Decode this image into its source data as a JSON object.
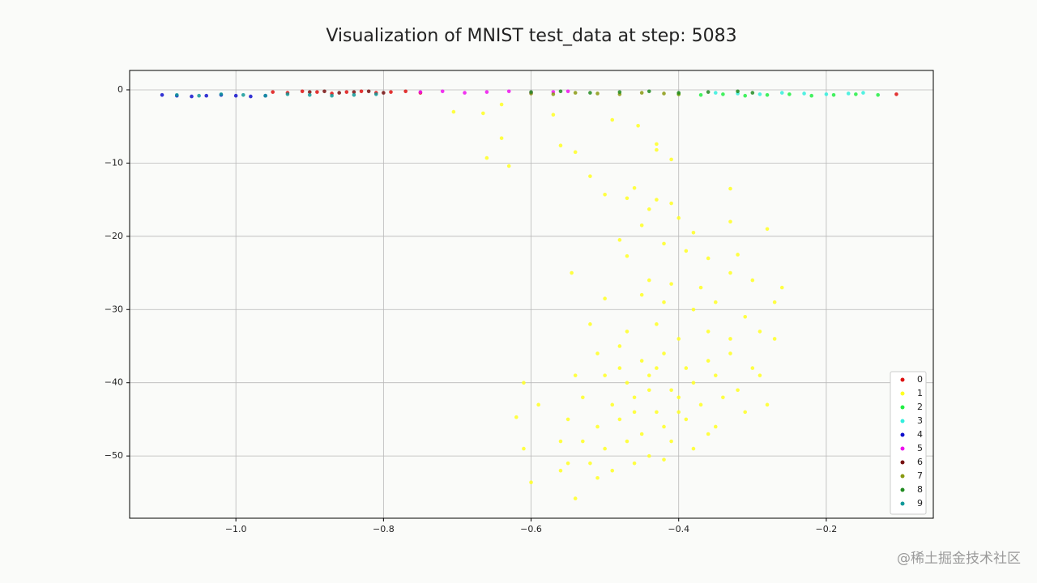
{
  "chart_data": {
    "type": "scatter",
    "title": "Visualization of MNIST test_data at step: 5083",
    "xlim": [
      -1.144,
      -0.055
    ],
    "ylim": [
      -58.5,
      2.65
    ],
    "xticks": [
      {
        "value": -1.0,
        "label": "−1.0"
      },
      {
        "value": -0.8,
        "label": "−0.8"
      },
      {
        "value": -0.6,
        "label": "−0.6"
      },
      {
        "value": -0.4,
        "label": "−0.4"
      },
      {
        "value": -0.2,
        "label": "−0.2"
      }
    ],
    "yticks": [
      0,
      {
        "value": -10,
        "label": "−10"
      },
      {
        "value": -20,
        "label": "−20"
      },
      {
        "value": -30,
        "label": "−30"
      },
      {
        "value": -40,
        "label": "−40"
      },
      {
        "value": -50,
        "label": "−50"
      }
    ],
    "grid": true,
    "legend": "lower right",
    "series": [
      {
        "name": "0",
        "color": "#dd1111",
        "x": [
          -0.95,
          -0.93,
          -0.91,
          -0.89,
          -0.87,
          -0.85,
          -0.83,
          -0.81,
          -0.79,
          -0.77,
          -0.75,
          -0.105
        ],
        "values": [
          -0.3,
          -0.4,
          -0.2,
          -0.3,
          -0.5,
          -0.3,
          -0.2,
          -0.4,
          -0.3,
          -0.2,
          -0.4,
          -0.6
        ]
      },
      {
        "name": "1",
        "color": "#ffff22",
        "x": [
          -0.705,
          -0.665,
          -0.64,
          -0.57,
          -0.49,
          -0.455,
          -0.64,
          -0.66,
          -0.63,
          -0.56,
          -0.54,
          -0.43,
          -0.43,
          -0.41,
          -0.52,
          -0.5,
          -0.47,
          -0.46,
          -0.43,
          -0.41,
          -0.33,
          -0.4,
          -0.45,
          -0.44,
          -0.38,
          -0.33,
          -0.28,
          -0.48,
          -0.42,
          -0.39,
          -0.47,
          -0.36,
          -0.32,
          -0.545,
          -0.44,
          -0.41,
          -0.37,
          -0.33,
          -0.3,
          -0.26,
          -0.5,
          -0.45,
          -0.42,
          -0.38,
          -0.35,
          -0.31,
          -0.27,
          -0.52,
          -0.47,
          -0.43,
          -0.4,
          -0.36,
          -0.33,
          -0.29,
          -0.27,
          -0.51,
          -0.48,
          -0.45,
          -0.42,
          -0.39,
          -0.36,
          -0.33,
          -0.3,
          -0.54,
          -0.5,
          -0.47,
          -0.44,
          -0.41,
          -0.38,
          -0.35,
          -0.32,
          -0.29,
          -0.53,
          -0.49,
          -0.46,
          -0.43,
          -0.4,
          -0.37,
          -0.34,
          -0.61,
          -0.59,
          -0.62,
          -0.55,
          -0.51,
          -0.48,
          -0.45,
          -0.42,
          -0.39,
          -0.36,
          -0.53,
          -0.5,
          -0.47,
          -0.44,
          -0.41,
          -0.38,
          -0.56,
          -0.55,
          -0.52,
          -0.49,
          -0.46,
          -0.42,
          -0.51,
          -0.61,
          -0.6,
          -0.54,
          -0.56,
          -0.35,
          -0.31,
          -0.28,
          -0.44,
          -0.4,
          -0.46,
          -0.48,
          -0.43
        ],
        "values": [
          -3,
          -3.2,
          -2,
          -3.4,
          -4.1,
          -4.9,
          -6.6,
          -9.3,
          -10.4,
          -7.6,
          -8.5,
          -7.4,
          -8.2,
          -9.5,
          -11.8,
          -14.3,
          -14.8,
          -13.4,
          -15,
          -15.5,
          -13.5,
          -17.5,
          -18.5,
          -16.3,
          -19.5,
          -18,
          -19,
          -20.5,
          -21,
          -22,
          -22.7,
          -23,
          -22.5,
          -25,
          -26,
          -26.5,
          -27,
          -25,
          -26,
          -27,
          -28.5,
          -28,
          -29,
          -30,
          -29,
          -31,
          -29,
          -32,
          -33,
          -32,
          -34,
          -33,
          -34,
          -33,
          -34,
          -36,
          -35,
          -37,
          -36,
          -38,
          -37,
          -36,
          -38,
          -39,
          -39,
          -40,
          -39,
          -41,
          -40,
          -39,
          -41,
          -39,
          -42,
          -43,
          -42,
          -44,
          -42,
          -43,
          -42,
          -40,
          -43,
          -44.7,
          -45,
          -46,
          -45,
          -47,
          -46,
          -45,
          -47,
          -48,
          -49,
          -48,
          -50,
          -48,
          -49,
          -48,
          -51,
          -51,
          -52,
          -51,
          -50.5,
          -53,
          -49,
          -53.6,
          -55.8,
          -52,
          -46,
          -44,
          -43,
          -41,
          -44,
          -44,
          -38,
          -38
        ]
      },
      {
        "name": "2",
        "color": "#22ee44",
        "x": [
          -0.4,
          -0.37,
          -0.34,
          -0.31,
          -0.28,
          -0.25,
          -0.22,
          -0.19,
          -0.16,
          -0.13
        ],
        "values": [
          -0.6,
          -0.7,
          -0.6,
          -0.8,
          -0.7,
          -0.6,
          -0.8,
          -0.7,
          -0.6,
          -0.7
        ]
      },
      {
        "name": "3",
        "color": "#33eedd",
        "x": [
          -0.35,
          -0.32,
          -0.29,
          -0.26,
          -0.23,
          -0.2,
          -0.17,
          -0.15
        ],
        "values": [
          -0.4,
          -0.5,
          -0.6,
          -0.4,
          -0.5,
          -0.6,
          -0.5,
          -0.4
        ]
      },
      {
        "name": "4",
        "color": "#1111cc",
        "x": [
          -1.1,
          -1.08,
          -1.06,
          -1.04,
          -1.02,
          -1.0,
          -0.98,
          -0.96
        ],
        "values": [
          -0.7,
          -0.8,
          -0.9,
          -0.8,
          -0.7,
          -0.8,
          -0.9,
          -0.8
        ]
      },
      {
        "name": "5",
        "color": "#ee11ee",
        "x": [
          -0.75,
          -0.72,
          -0.69,
          -0.66,
          -0.63,
          -0.6,
          -0.57,
          -0.55
        ],
        "values": [
          -0.3,
          -0.2,
          -0.4,
          -0.3,
          -0.2,
          -0.4,
          -0.3,
          -0.2
        ]
      },
      {
        "name": "6",
        "color": "#771111",
        "x": [
          -0.9,
          -0.88,
          -0.86,
          -0.84,
          -0.82,
          -0.8
        ],
        "values": [
          -0.3,
          -0.2,
          -0.4,
          -0.3,
          -0.2,
          -0.4
        ]
      },
      {
        "name": "7",
        "color": "#889911",
        "x": [
          -0.6,
          -0.57,
          -0.54,
          -0.51,
          -0.48,
          -0.45,
          -0.42,
          -0.4
        ],
        "values": [
          -0.5,
          -0.6,
          -0.4,
          -0.5,
          -0.6,
          -0.4,
          -0.5,
          -0.6
        ]
      },
      {
        "name": "8",
        "color": "#228b22",
        "x": [
          -0.6,
          -0.56,
          -0.52,
          -0.48,
          -0.44,
          -0.4,
          -0.36,
          -0.32,
          -0.3
        ],
        "values": [
          -0.3,
          -0.2,
          -0.4,
          -0.3,
          -0.2,
          -0.4,
          -0.3,
          -0.2,
          -0.4
        ]
      },
      {
        "name": "9",
        "color": "#119999",
        "x": [
          -1.08,
          -1.05,
          -1.02,
          -0.99,
          -0.96,
          -0.93,
          -0.9,
          -0.87,
          -0.84,
          -0.81
        ],
        "values": [
          -0.7,
          -0.8,
          -0.6,
          -0.7,
          -0.8,
          -0.6,
          -0.7,
          -0.8,
          -0.7,
          -0.6
        ]
      }
    ]
  },
  "watermark": "@稀土掘金技术社区"
}
